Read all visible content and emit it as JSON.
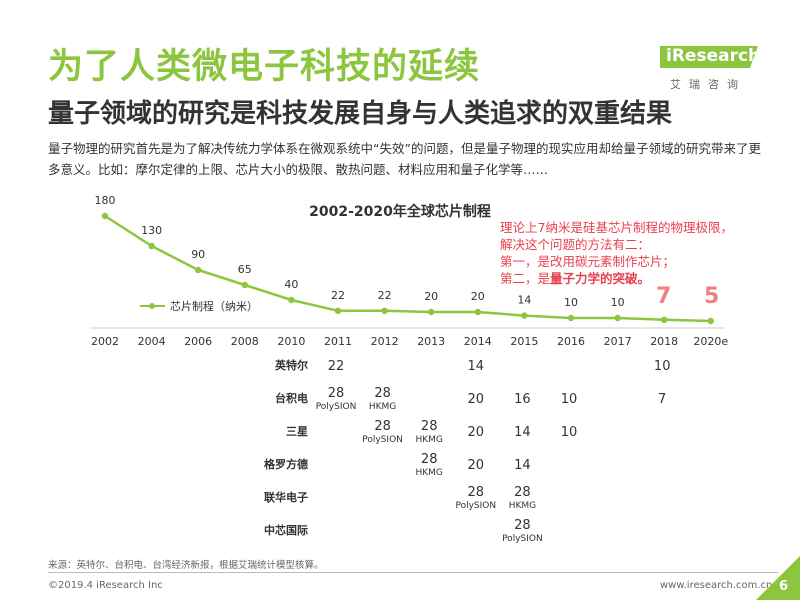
{
  "page": {
    "title": "为了人类微电子科技的延续",
    "subtitle": "量子领域的研究是科技发展自身与人类追求的双重结果",
    "description": "量子物理的研究首先是为了解决传统力学体系在微观系统中“失效”的问题，但是量子物理的现实应用却给量子领域的研究带来了更多意义。比如：摩尔定律的上限、芯片大小的极限、散热问题、材料应用和量子化学等……",
    "logo_text": "iResearch",
    "logo_cn": "艾瑞咨询",
    "note_lines": [
      "理论上7纳米是硅基芯片制程的物理极限，",
      "解决这个问题的方法有二：",
      "第一，是改用碳元素制作芯片；"
    ],
    "note_last_prefix": "第二，是",
    "note_last_bold": "量子力学的突破。",
    "source": "来源：英特尔、台积电、台湾经济新报，根据艾瑞统计模型核算。",
    "copyright": "©2019.4 iResearch Inc",
    "website": "www.iresearch.com.cn",
    "page_number": "6",
    "colors": {
      "accent": "#8cc63f",
      "highlight": "#e8414e",
      "big_value": "#f08080"
    }
  },
  "chart_data": {
    "type": "line",
    "title": "2002-2020年全球芯片制程",
    "categories": [
      "2002",
      "2004",
      "2006",
      "2008",
      "2010",
      "2011",
      "2012",
      "2013",
      "2014",
      "2015",
      "2016",
      "2017",
      "2018",
      "2020e"
    ],
    "series": [
      {
        "name": "芯片制程（纳米）",
        "values": [
          180,
          130,
          90,
          65,
          40,
          22,
          22,
          20,
          20,
          14,
          10,
          10,
          7,
          5
        ]
      }
    ],
    "data_labels": [
      "180",
      "130",
      "90",
      "65",
      "40",
      "22",
      "22",
      "20",
      "20",
      "14",
      "10",
      "10",
      "7",
      "5"
    ],
    "highlight_labels": {
      "2018": "7",
      "2020e": "5"
    },
    "legend_position": "bottom-left",
    "table": {
      "rows": [
        {
          "company": "英特尔",
          "cells": {
            "2011": [
              "22",
              ""
            ],
            "2014": [
              "14",
              ""
            ],
            "2018": [
              "10",
              ""
            ]
          }
        },
        {
          "company": "台积电",
          "cells": {
            "2011": [
              "28",
              "PolySION"
            ],
            "2012": [
              "28",
              "HKMG"
            ],
            "2014": [
              "20",
              ""
            ],
            "2015": [
              "16",
              ""
            ],
            "2016": [
              "10",
              ""
            ],
            "2018": [
              "7",
              ""
            ]
          }
        },
        {
          "company": "三星",
          "cells": {
            "2012": [
              "28",
              "PolySION"
            ],
            "2013": [
              "28",
              "HKMG"
            ],
            "2014": [
              "20",
              ""
            ],
            "2015": [
              "14",
              ""
            ],
            "2016": [
              "10",
              ""
            ]
          }
        },
        {
          "company": "格罗方德",
          "cells": {
            "2013": [
              "28",
              "HKMG"
            ],
            "2014": [
              "20",
              ""
            ],
            "2015": [
              "14",
              ""
            ]
          }
        },
        {
          "company": "联华电子",
          "cells": {
            "2014": [
              "28",
              "PolySION"
            ],
            "2015": [
              "28",
              "HKMG"
            ]
          }
        },
        {
          "company": "中芯国际",
          "cells": {
            "2015": [
              "28",
              "PolySION"
            ]
          }
        }
      ]
    }
  }
}
